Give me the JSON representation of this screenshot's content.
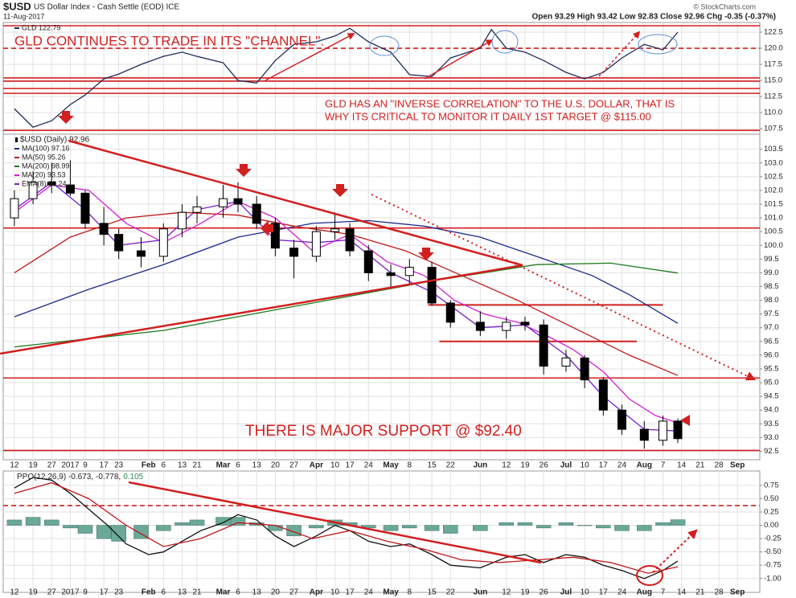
{
  "header": {
    "symbol": "$USD",
    "name": "US Dollar Index - Cash Settle (EOD) ICE",
    "date": "11-Aug-2017",
    "quote": "Open 93.29  High 93.42  Low 92.83  Close 92.96  Chg -0.35 (-0.37%)",
    "credit": "© StockCharts.com"
  },
  "chart_data": [
    {
      "type": "line",
      "xlim": [
        -3,
        200
      ],
      "ylim": [
        106.9,
        123.75
      ],
      "yticks": [
        107.5,
        {
          "value": 110,
          "label": "110.0"
        },
        112.5,
        {
          "value": 115,
          "label": "115.0"
        },
        117.5,
        {
          "value": 120,
          "label": "120.0"
        },
        122.5
      ],
      "grid": true,
      "series": [
        {
          "name": "GLD 122.79",
          "color": "#1f2d5c",
          "x": [
            0,
            5,
            10,
            15,
            19,
            24,
            28,
            34,
            40,
            45,
            49,
            56,
            60,
            65,
            70,
            75,
            81,
            86,
            90,
            95,
            101,
            106,
            112,
            117,
            125,
            128,
            132,
            137,
            142,
            148,
            153,
            158,
            163,
            169,
            174,
            178
          ],
          "values": [
            110.6,
            107.75,
            108.75,
            111.25,
            112.75,
            115.25,
            116,
            117.5,
            118.75,
            119.4,
            118.75,
            117.75,
            115,
            114.6,
            118.1,
            120.6,
            121,
            121.9,
            123.1,
            121,
            119.4,
            115.9,
            115.6,
            118.5,
            120,
            122.9,
            120,
            119.4,
            118.1,
            116.25,
            115.25,
            116.25,
            118.5,
            120.6,
            119.75,
            122.5
          ]
        }
      ],
      "hlines": [
        123.5,
        115.4,
        114.9,
        113.75,
        113,
        107.25
      ],
      "dashed_hlines": [
        120
      ],
      "annotations": [
        "GLD CONTINUES TO TRADE IN ITS \"CHANNEL\".",
        "GLD HAS AN \"INVERSE CORRELATION\" TO THE U.S. DOLLAR, THAT IS",
        "WHY ITS CRITICAL TO MONITOR IT DAILY 1ST TARGET @ $115.00"
      ]
    },
    {
      "type": "candlestick",
      "xlim": [
        -3,
        200
      ],
      "ylim": [
        92.25,
        103.9
      ],
      "xticks": [
        {
          "value": 0,
          "label": "12"
        },
        {
          "value": 5,
          "label": "19"
        },
        {
          "value": 10,
          "label": "27"
        },
        {
          "value": 15,
          "label": "2017"
        },
        {
          "value": 19,
          "label": "9"
        },
        {
          "value": 24,
          "label": "17"
        },
        {
          "value": 28,
          "label": "23"
        },
        {
          "value": 36,
          "label": "Feb"
        },
        {
          "value": 40,
          "label": "6"
        },
        {
          "value": 45,
          "label": "13"
        },
        {
          "value": 49,
          "label": "21"
        },
        {
          "value": 56,
          "label": "Mar"
        },
        {
          "value": 60,
          "label": "6"
        },
        {
          "value": 65,
          "label": "13"
        },
        {
          "value": 70,
          "label": "20"
        },
        {
          "value": 75,
          "label": "27"
        },
        {
          "value": 81,
          "label": "Apr"
        },
        {
          "value": 86,
          "label": "10"
        },
        {
          "value": 90,
          "label": "17"
        },
        {
          "value": 95,
          "label": "24"
        },
        {
          "value": 101,
          "label": "May"
        },
        {
          "value": 106,
          "label": "8"
        },
        {
          "value": 112,
          "label": "15"
        },
        {
          "value": 117,
          "label": "22"
        },
        {
          "value": 125,
          "label": "Jun"
        },
        {
          "value": 132,
          "label": "12"
        },
        {
          "value": 137,
          "label": "19"
        },
        {
          "value": 142,
          "label": "26"
        },
        {
          "value": 148,
          "label": "Jul"
        },
        {
          "value": 153,
          "label": "10"
        },
        {
          "value": 158,
          "label": "17"
        },
        {
          "value": 163,
          "label": "24"
        },
        {
          "value": 169,
          "label": "Aug"
        },
        {
          "value": 174,
          "label": "7"
        },
        {
          "value": 179,
          "label": "14"
        },
        {
          "value": 184,
          "label": "21"
        },
        {
          "value": 189,
          "label": "28"
        },
        {
          "value": 194,
          "label": "Sep"
        }
      ],
      "yticks": [
        92.5,
        {
          "value": 93,
          "label": "93.0"
        },
        93.5,
        {
          "value": 94,
          "label": "94.0"
        },
        94.5,
        {
          "value": 95,
          "label": "95.0"
        },
        95.5,
        {
          "value": 96,
          "label": "96.0"
        },
        96.5,
        {
          "value": 97,
          "label": "97.0"
        },
        97.5,
        {
          "value": 98,
          "label": "98.0"
        },
        98.5,
        {
          "value": 99,
          "label": "99.0"
        },
        99.5,
        {
          "value": 100,
          "label": "100.0"
        },
        100.5,
        {
          "value": 101,
          "label": "101.0"
        },
        101.5,
        {
          "value": 102,
          "label": "102.0"
        },
        102.5,
        {
          "value": 103,
          "label": "103.0"
        },
        103.5
      ],
      "grid": true,
      "candles": {
        "name": "$USD (Daily) 92.96",
        "x": [
          0,
          5,
          10,
          15,
          19,
          24,
          28,
          34,
          40,
          45,
          49,
          56,
          60,
          65,
          70,
          75,
          81,
          86,
          90,
          95,
          101,
          106,
          112,
          117,
          125,
          132,
          137,
          142,
          148,
          153,
          158,
          163,
          169,
          174,
          178
        ],
        "open": [
          101.0,
          101.7,
          102.3,
          102.2,
          101.9,
          100.8,
          100.4,
          99.8,
          99.6,
          100.6,
          101.2,
          101.4,
          101.7,
          101.5,
          100.8,
          99.9,
          99.6,
          100.5,
          100.6,
          99.8,
          99.0,
          98.9,
          99.2,
          97.9,
          97.2,
          96.9,
          97.2,
          97.1,
          95.6,
          95.9,
          95.1,
          94.0,
          93.3,
          92.9,
          93.6
        ],
        "high": [
          102.0,
          102.7,
          103.0,
          103.1,
          102.0,
          101.4,
          100.6,
          100.3,
          100.8,
          101.5,
          101.8,
          102.2,
          102.3,
          101.8,
          101.0,
          100.2,
          100.7,
          101.2,
          100.8,
          100.0,
          99.3,
          99.5,
          99.4,
          98.0,
          97.6,
          97.4,
          97.4,
          97.3,
          96.2,
          96.0,
          95.2,
          94.2,
          93.6,
          93.8,
          93.7
        ],
        "low": [
          100.7,
          101.5,
          101.9,
          101.8,
          100.6,
          100.0,
          99.5,
          99.2,
          99.4,
          100.3,
          100.8,
          101.0,
          101.2,
          100.6,
          99.6,
          98.8,
          99.4,
          100.2,
          99.6,
          98.7,
          98.5,
          98.6,
          97.8,
          97.0,
          96.7,
          96.6,
          96.9,
          95.3,
          95.4,
          94.8,
          93.8,
          93.1,
          92.6,
          92.7,
          92.8
        ],
        "close": [
          101.7,
          102.3,
          102.2,
          101.9,
          100.8,
          100.4,
          99.8,
          99.6,
          100.6,
          101.2,
          101.4,
          101.7,
          101.5,
          100.8,
          99.9,
          99.6,
          100.5,
          100.6,
          99.8,
          99.0,
          98.9,
          99.2,
          97.9,
          97.2,
          96.9,
          97.2,
          97.1,
          95.6,
          95.9,
          95.1,
          94.0,
          93.3,
          92.9,
          93.6,
          92.96
        ]
      },
      "series": [
        {
          "name": "MA(100) 97.16",
          "color": "#1c2a8a",
          "x": [
            0,
            20,
            40,
            60,
            80,
            95,
            110,
            125,
            140,
            155,
            165,
            178
          ],
          "values": [
            97.4,
            98.4,
            99.3,
            100.3,
            100.8,
            100.9,
            100.7,
            100.3,
            99.6,
            98.9,
            98.2,
            97.16
          ]
        },
        {
          "name": "MA(50) 95.26",
          "color": "#c01818",
          "x": [
            0,
            15,
            30,
            45,
            60,
            75,
            90,
            105,
            120,
            135,
            150,
            165,
            178
          ],
          "values": [
            99.0,
            100.3,
            101.0,
            101.2,
            101.1,
            100.7,
            100.4,
            99.8,
            98.9,
            98.0,
            97.0,
            96.0,
            95.26
          ]
        },
        {
          "name": "MA(200) 98.99",
          "color": "#1d7a1d",
          "x": [
            0,
            40,
            80,
            112,
            140,
            160,
            178
          ],
          "values": [
            96.3,
            96.9,
            97.9,
            98.7,
            99.3,
            99.35,
            98.99
          ]
        },
        {
          "name": "MA(20) 93.53",
          "color": "#d21fd2",
          "x": [
            0,
            10,
            20,
            30,
            40,
            50,
            60,
            70,
            80,
            90,
            100,
            110,
            118,
            126,
            135,
            143,
            150,
            158,
            165,
            172,
            178
          ],
          "values": [
            101.2,
            102.2,
            102.0,
            100.8,
            100.1,
            100.8,
            101.6,
            101.0,
            99.8,
            100.4,
            99.4,
            98.9,
            98.0,
            97.5,
            97.2,
            96.7,
            96.2,
            95.4,
            94.4,
            93.8,
            93.53
          ]
        },
        {
          "name": "EMA(8) 93.24",
          "color": "#7a1fc8",
          "x": [
            0,
            10,
            19,
            28,
            40,
            49,
            60,
            70,
            81,
            90,
            101,
            112,
            125,
            137,
            148,
            158,
            169,
            178
          ],
          "values": [
            101.3,
            102.3,
            101.3,
            100.0,
            100.2,
            101.3,
            101.6,
            100.2,
            100.1,
            100.2,
            99.0,
            98.3,
            97.0,
            97.1,
            96.0,
            94.5,
            93.3,
            93.24
          ]
        }
      ],
      "hlines": [
        100.63,
        95.17,
        92.53
      ],
      "segments": [
        {
          "y": 97.83,
          "x": [
            111,
            174
          ]
        },
        {
          "y": 96.5,
          "x": [
            114,
            167
          ]
        }
      ],
      "annotations": [
        "THERE IS MAJOR SUPPORT @ $92.40"
      ]
    },
    {
      "type": "line",
      "xlim": [
        -3,
        200
      ],
      "ylim": [
        -1.23,
        0.96
      ],
      "xticks": [
        {
          "value": 0,
          "label": "12"
        },
        {
          "value": 5,
          "label": "19"
        },
        {
          "value": 10,
          "label": "27"
        },
        {
          "value": 15,
          "label": "2017"
        },
        {
          "value": 19,
          "label": "9"
        },
        {
          "value": 24,
          "label": "17"
        },
        {
          "value": 28,
          "label": "23"
        },
        {
          "value": 36,
          "label": "Feb"
        },
        {
          "value": 40,
          "label": "6"
        },
        {
          "value": 45,
          "label": "13"
        },
        {
          "value": 49,
          "label": "21"
        },
        {
          "value": 56,
          "label": "Mar"
        },
        {
          "value": 60,
          "label": "6"
        },
        {
          "value": 65,
          "label": "13"
        },
        {
          "value": 70,
          "label": "20"
        },
        {
          "value": 75,
          "label": "27"
        },
        {
          "value": 81,
          "label": "Apr"
        },
        {
          "value": 86,
          "label": "10"
        },
        {
          "value": 90,
          "label": "17"
        },
        {
          "value": 95,
          "label": "24"
        },
        {
          "value": 101,
          "label": "May"
        },
        {
          "value": 106,
          "label": "8"
        },
        {
          "value": 112,
          "label": "15"
        },
        {
          "value": 117,
          "label": "22"
        },
        {
          "value": 125,
          "label": "Jun"
        },
        {
          "value": 132,
          "label": "12"
        },
        {
          "value": 137,
          "label": "19"
        },
        {
          "value": 142,
          "label": "26"
        },
        {
          "value": 148,
          "label": "Jul"
        },
        {
          "value": 153,
          "label": "10"
        },
        {
          "value": 158,
          "label": "17"
        },
        {
          "value": 163,
          "label": "24"
        },
        {
          "value": 169,
          "label": "Aug"
        },
        {
          "value": 174,
          "label": "7"
        },
        {
          "value": 179,
          "label": "14"
        },
        {
          "value": 184,
          "label": "21"
        },
        {
          "value": 189,
          "label": "28"
        },
        {
          "value": 194,
          "label": "Sep"
        }
      ],
      "yticks": [
        0.75,
        {
          "value": 0.5,
          "label": "0.50"
        },
        0.25,
        {
          "value": 0,
          "label": "0.00"
        },
        -0.25,
        {
          "value": -0.5,
          "label": "-0.50"
        },
        -0.75,
        {
          "value": -1,
          "label": "-1.00"
        }
      ],
      "grid": true,
      "series": [
        {
          "name": "0.105",
          "type": "bar",
          "color": "#6aa898",
          "x": [
            0,
            5,
            10,
            15,
            19,
            24,
            28,
            34,
            40,
            45,
            49,
            56,
            60,
            65,
            70,
            75,
            81,
            86,
            90,
            95,
            101,
            106,
            112,
            117,
            125,
            132,
            137,
            142,
            148,
            153,
            158,
            163,
            169,
            174,
            178
          ],
          "values": [
            0.1,
            0.15,
            0.1,
            -0.05,
            -0.15,
            -0.25,
            -0.3,
            -0.25,
            -0.1,
            0.05,
            0.1,
            0.15,
            0.15,
            0.05,
            -0.1,
            -0.2,
            -0.05,
            0.1,
            0.05,
            -0.05,
            -0.1,
            -0.05,
            -0.1,
            -0.15,
            -0.1,
            0.05,
            0.05,
            -0.05,
            0.05,
            0.0,
            -0.05,
            -0.1,
            -0.1,
            0.05,
            0.105
          ]
        },
        {
          "name": "PPO(12,26,9) -0.673,",
          "type": "line",
          "color": "#111111",
          "x": [
            0,
            5,
            10,
            15,
            20,
            25,
            30,
            36,
            40,
            45,
            50,
            56,
            60,
            65,
            70,
            75,
            81,
            86,
            90,
            95,
            101,
            106,
            112,
            117,
            125,
            132,
            137,
            142,
            148,
            153,
            158,
            163,
            169,
            174,
            178
          ],
          "values": [
            0.7,
            0.9,
            0.85,
            0.6,
            0.3,
            0.0,
            -0.35,
            -0.55,
            -0.5,
            -0.3,
            -0.1,
            0.05,
            0.2,
            0.1,
            -0.2,
            -0.4,
            -0.2,
            0.0,
            -0.1,
            -0.3,
            -0.4,
            -0.35,
            -0.55,
            -0.75,
            -0.8,
            -0.6,
            -0.55,
            -0.7,
            -0.55,
            -0.6,
            -0.75,
            -0.85,
            -1.0,
            -0.85,
            -0.673
          ]
        },
        {
          "name": "-0.778,",
          "type": "line",
          "color": "#c01818",
          "x": [
            0,
            10,
            20,
            30,
            40,
            50,
            60,
            70,
            80,
            90,
            100,
            110,
            120,
            130,
            140,
            150,
            160,
            170,
            178
          ],
          "values": [
            0.6,
            0.8,
            0.5,
            0.0,
            -0.4,
            -0.25,
            0.05,
            0.0,
            -0.25,
            -0.1,
            -0.3,
            -0.45,
            -0.65,
            -0.7,
            -0.65,
            -0.6,
            -0.7,
            -0.9,
            -0.778
          ]
        }
      ],
      "dashed_hlines": [
        0.37
      ]
    }
  ]
}
